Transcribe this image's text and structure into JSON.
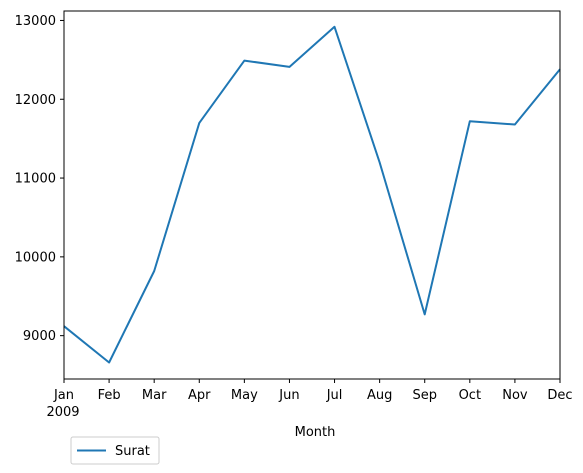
{
  "chart_data": {
    "type": "line",
    "x": [
      "Jan",
      "Feb",
      "Mar",
      "Apr",
      "May",
      "Jun",
      "Jul",
      "Aug",
      "Sep",
      "Oct",
      "Nov",
      "Dec"
    ],
    "x_year_label": "2009",
    "xlabel": "Month",
    "ylabel": "",
    "title": "",
    "ylim": [
      8450,
      13120
    ],
    "yticks": [
      9000,
      10000,
      11000,
      12000,
      13000
    ],
    "series": [
      {
        "name": "Surat",
        "color": "#1f77b4",
        "values": [
          9120,
          8660,
          9820,
          11700,
          12490,
          12410,
          12920,
          11200,
          9270,
          11720,
          11680,
          12380
        ]
      }
    ],
    "legend": {
      "placement": "below-left",
      "entries": [
        "Surat"
      ]
    },
    "grid": false
  }
}
